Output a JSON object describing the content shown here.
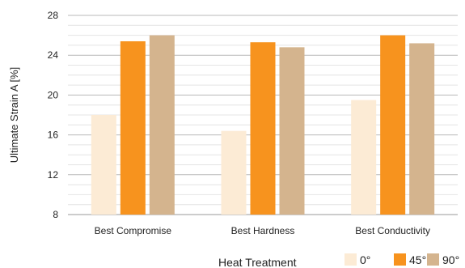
{
  "chart_data": {
    "type": "bar",
    "ylabel": "Ultimate Strain A [%]",
    "xlabel": "",
    "categories": [
      "Best Compromise",
      "Best Hardness",
      "Best Conductivity"
    ],
    "ylim": [
      8,
      28
    ],
    "y_ticks": [
      8,
      12,
      16,
      20,
      24,
      28
    ],
    "grid": true,
    "legend": {
      "title": "Heat Treatment",
      "placement": "bottom-right"
    },
    "series": [
      {
        "name": "0°",
        "color": "#fcebd5",
        "values": [
          18.0,
          16.4,
          19.5
        ]
      },
      {
        "name": "45°",
        "color": "#f7931e",
        "values": [
          25.4,
          25.3,
          26.0
        ]
      },
      {
        "name": "90°",
        "color": "#d4b48e",
        "values": [
          26.0,
          24.8,
          25.2
        ]
      }
    ]
  }
}
